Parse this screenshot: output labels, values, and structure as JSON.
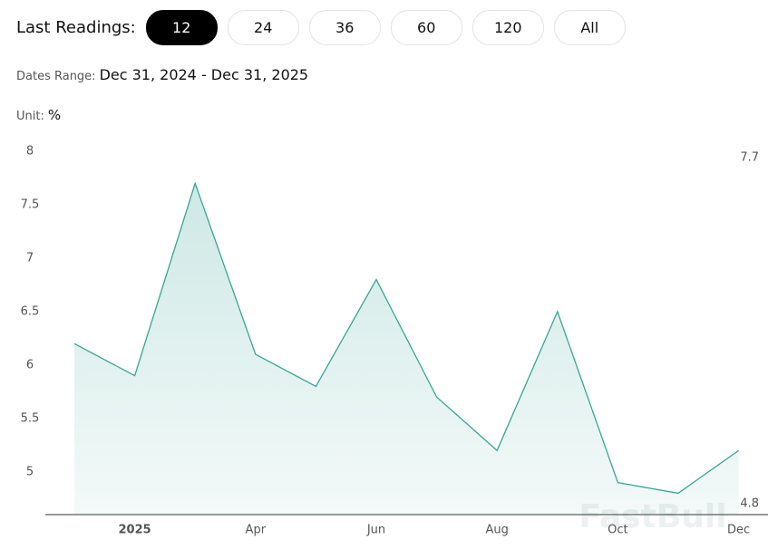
{
  "header": {
    "label": "Last Readings:",
    "options": [
      "12",
      "24",
      "36",
      "60",
      "120",
      "All"
    ],
    "selected": 0
  },
  "dates_range": {
    "label": "Dates Range:",
    "value": "Dec 31, 2024 - Dec 31, 2025"
  },
  "unit": {
    "label": "Unit:",
    "value": "%"
  },
  "chart_data": {
    "type": "line",
    "categories": [
      null,
      "2025",
      null,
      "Apr",
      null,
      "Jun",
      null,
      "Aug",
      null,
      "Oct",
      null,
      "Dec"
    ],
    "values": [
      6.2,
      5.9,
      7.7,
      6.1,
      5.8,
      6.8,
      5.7,
      5.2,
      6.5,
      4.9,
      4.8,
      5.2
    ],
    "color": "#3aa597",
    "ylim": [
      4.6,
      8
    ],
    "yticks": [
      5,
      5.5,
      6,
      6.5,
      7,
      7.5,
      8
    ],
    "max_label": 7.7,
    "min_label": 4.8,
    "watermark": "FastBull"
  }
}
